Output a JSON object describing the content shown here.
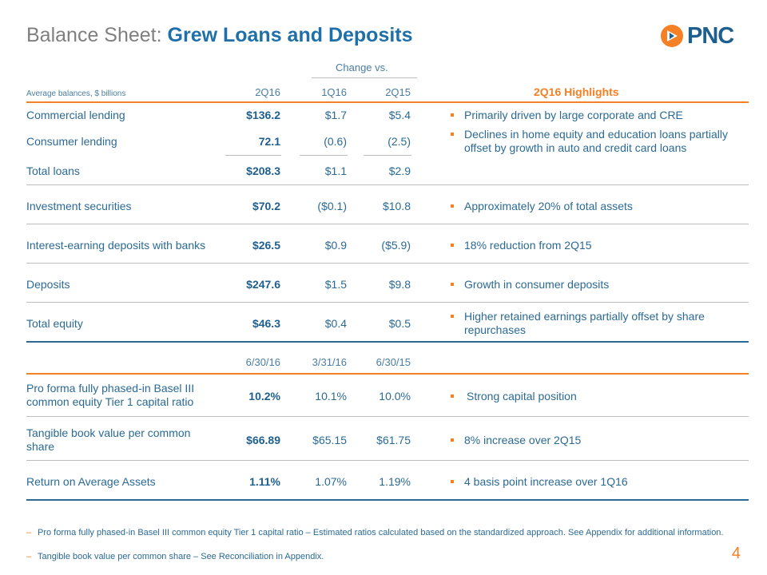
{
  "title": {
    "prefix": "Balance Sheet: ",
    "main": "Grew Loans and Deposits"
  },
  "logo": {
    "text": "PNC"
  },
  "table_header": {
    "change_vs": "Change vs.",
    "row_label": "Average balances, $ billions",
    "col1": "2Q16",
    "col2": "1Q16",
    "col3": "2Q15",
    "highlights": "2Q16 Highlights"
  },
  "rows": [
    {
      "label": "Commercial lending",
      "v1": "$136.2",
      "v2": "$1.7",
      "v3": "$5.4"
    },
    {
      "label": "Consumer lending",
      "v1": "72.1",
      "v2": "(0.6)",
      "v3": "(2.5)"
    },
    {
      "label": "Total loans",
      "v1": "$208.3",
      "v2": "$1.1",
      "v3": "$2.9"
    },
    {
      "label": "Investment securities",
      "v1": "$70.2",
      "v2": "($0.1)",
      "v3": "$10.8"
    },
    {
      "label": "Interest-earning deposits with banks",
      "v1": "$26.5",
      "v2": "$0.9",
      "v3": "($5.9)"
    },
    {
      "label": "Deposits",
      "v1": "$247.6",
      "v2": "$1.5",
      "v3": "$9.8"
    },
    {
      "label": "Total equity",
      "v1": "$46.3",
      "v2": "$0.4",
      "v3": "$0.5"
    }
  ],
  "highlights": [
    "Primarily driven by large corporate and CRE",
    "Declines in home equity and education loans partially offset by growth in auto and credit card loans",
    "Approximately 20% of total assets",
    "18% reduction from 2Q15",
    "Growth in consumer deposits",
    "Higher retained earnings partially offset by share repurchases"
  ],
  "table2_header": {
    "col1": "6/30/16",
    "col2": "3/31/16",
    "col3": "6/30/15"
  },
  "rows2": [
    {
      "label_line1": "Pro forma fully phased-in Basel III",
      "label_line2": "common equity Tier 1 capital ratio",
      "v1": "10.2%",
      "v2": "10.1%",
      "v3": "10.0%",
      "highlight": "Strong capital position"
    },
    {
      "label_line1": "Tangible book value per common",
      "label_line2": "share",
      "v1": "$66.89",
      "v2": "$65.15",
      "v3": "$61.75",
      "highlight": "8% increase over 2Q15"
    },
    {
      "label_line1": "Return on Average Assets",
      "label_line2": "",
      "v1": "1.11%",
      "v2": "1.07%",
      "v3": "1.19%",
      "highlight": "4 basis point increase over 1Q16"
    }
  ],
  "footnotes": [
    "Pro forma fully phased-in Basel III common equity Tier 1 capital ratio – Estimated ratios calculated based on the standardized approach. See Appendix for additional information.",
    "Tangible book value per common share – See Reconciliation in Appendix."
  ],
  "page_number": "4",
  "colors": {
    "accent_orange": "#f58025",
    "primary_blue": "#1f5f8d",
    "text_blue": "#2b6a94",
    "title_gray": "#7f7f7f"
  }
}
